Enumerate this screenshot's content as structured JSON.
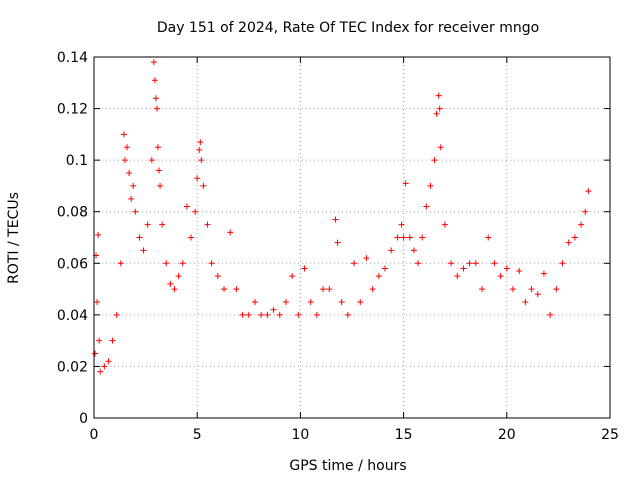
{
  "chart_data": {
    "type": "scatter",
    "title": "Day 151 of 2024, Rate Of TEC Index for receiver mngo",
    "xlabel": "GPS time / hours",
    "ylabel": "ROTI / TECUs",
    "xlim": [
      0,
      25
    ],
    "ylim": [
      0,
      0.14
    ],
    "x_ticks": [
      0,
      5,
      10,
      15,
      20,
      25
    ],
    "y_ticks": [
      0,
      0.02,
      0.04,
      0.06,
      0.08,
      0.1,
      0.12,
      0.14
    ],
    "x_tick_labels": [
      "0",
      "5",
      "10",
      "15",
      "20",
      "25"
    ],
    "y_tick_labels": [
      "0",
      "0.02",
      "0.04",
      "0.06",
      "0.08",
      "0.1",
      "0.12",
      "0.14"
    ],
    "grid": true,
    "marker": "+",
    "color": "#ff0000",
    "series": [
      {
        "name": "ROTI",
        "points": [
          [
            0.05,
            0.025
          ],
          [
            0.1,
            0.063
          ],
          [
            0.15,
            0.045
          ],
          [
            0.2,
            0.071
          ],
          [
            0.25,
            0.03
          ],
          [
            0.3,
            0.018
          ],
          [
            0.5,
            0.02
          ],
          [
            0.7,
            0.022
          ],
          [
            0.9,
            0.03
          ],
          [
            1.1,
            0.04
          ],
          [
            1.3,
            0.06
          ],
          [
            1.45,
            0.11
          ],
          [
            1.5,
            0.1
          ],
          [
            1.6,
            0.105
          ],
          [
            1.7,
            0.095
          ],
          [
            1.8,
            0.085
          ],
          [
            1.9,
            0.09
          ],
          [
            2.0,
            0.08
          ],
          [
            2.2,
            0.07
          ],
          [
            2.4,
            0.065
          ],
          [
            2.6,
            0.075
          ],
          [
            2.8,
            0.1
          ],
          [
            2.9,
            0.138
          ],
          [
            2.95,
            0.131
          ],
          [
            3.0,
            0.124
          ],
          [
            3.05,
            0.12
          ],
          [
            3.1,
            0.105
          ],
          [
            3.15,
            0.096
          ],
          [
            3.2,
            0.09
          ],
          [
            3.3,
            0.075
          ],
          [
            3.5,
            0.06
          ],
          [
            3.7,
            0.052
          ],
          [
            3.9,
            0.05
          ],
          [
            4.1,
            0.055
          ],
          [
            4.3,
            0.06
          ],
          [
            4.5,
            0.082
          ],
          [
            4.7,
            0.07
          ],
          [
            4.9,
            0.08
          ],
          [
            5.0,
            0.093
          ],
          [
            5.1,
            0.104
          ],
          [
            5.15,
            0.107
          ],
          [
            5.2,
            0.1
          ],
          [
            5.3,
            0.09
          ],
          [
            5.5,
            0.075
          ],
          [
            5.7,
            0.06
          ],
          [
            6.0,
            0.055
          ],
          [
            6.3,
            0.05
          ],
          [
            6.6,
            0.072
          ],
          [
            6.9,
            0.05
          ],
          [
            7.2,
            0.04
          ],
          [
            7.5,
            0.04
          ],
          [
            7.8,
            0.045
          ],
          [
            8.1,
            0.04
          ],
          [
            8.4,
            0.04
          ],
          [
            8.7,
            0.042
          ],
          [
            9.0,
            0.04
          ],
          [
            9.3,
            0.045
          ],
          [
            9.6,
            0.055
          ],
          [
            9.9,
            0.04
          ],
          [
            10.2,
            0.058
          ],
          [
            10.5,
            0.045
          ],
          [
            10.8,
            0.04
          ],
          [
            11.1,
            0.05
          ],
          [
            11.4,
            0.05
          ],
          [
            11.7,
            0.077
          ],
          [
            11.8,
            0.068
          ],
          [
            12.0,
            0.045
          ],
          [
            12.3,
            0.04
          ],
          [
            12.6,
            0.06
          ],
          [
            12.9,
            0.045
          ],
          [
            13.2,
            0.062
          ],
          [
            13.5,
            0.05
          ],
          [
            13.8,
            0.055
          ],
          [
            14.1,
            0.058
          ],
          [
            14.4,
            0.065
          ],
          [
            14.7,
            0.07
          ],
          [
            14.9,
            0.075
          ],
          [
            15.0,
            0.07
          ],
          [
            15.1,
            0.091
          ],
          [
            15.3,
            0.07
          ],
          [
            15.5,
            0.065
          ],
          [
            15.7,
            0.06
          ],
          [
            15.9,
            0.07
          ],
          [
            16.1,
            0.082
          ],
          [
            16.3,
            0.09
          ],
          [
            16.5,
            0.1
          ],
          [
            16.6,
            0.118
          ],
          [
            16.7,
            0.125
          ],
          [
            16.75,
            0.12
          ],
          [
            16.8,
            0.105
          ],
          [
            17.0,
            0.075
          ],
          [
            17.3,
            0.06
          ],
          [
            17.6,
            0.055
          ],
          [
            17.9,
            0.058
          ],
          [
            18.2,
            0.06
          ],
          [
            18.5,
            0.06
          ],
          [
            18.8,
            0.05
          ],
          [
            19.1,
            0.07
          ],
          [
            19.4,
            0.06
          ],
          [
            19.7,
            0.055
          ],
          [
            20.0,
            0.058
          ],
          [
            20.3,
            0.05
          ],
          [
            20.6,
            0.057
          ],
          [
            20.9,
            0.045
          ],
          [
            21.2,
            0.05
          ],
          [
            21.5,
            0.048
          ],
          [
            21.8,
            0.056
          ],
          [
            22.1,
            0.04
          ],
          [
            22.4,
            0.05
          ],
          [
            22.7,
            0.06
          ],
          [
            23.0,
            0.068
          ],
          [
            23.3,
            0.07
          ],
          [
            23.6,
            0.075
          ],
          [
            23.8,
            0.08
          ],
          [
            23.95,
            0.088
          ]
        ]
      }
    ]
  }
}
